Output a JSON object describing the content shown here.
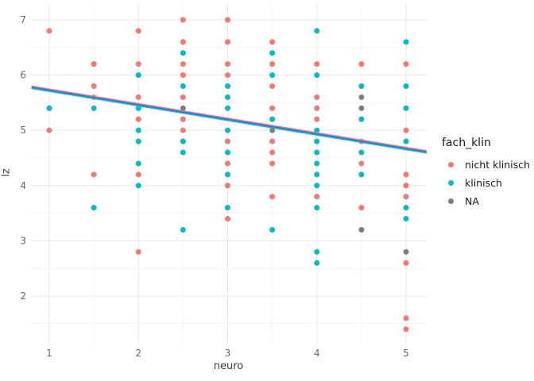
{
  "chart_data": {
    "type": "scatter",
    "title": "",
    "xlabel": "neuro",
    "ylabel": "lz",
    "x_ticks": [
      1,
      2,
      3,
      4,
      5
    ],
    "y_ticks": [
      2,
      3,
      4,
      5,
      6,
      7
    ],
    "x_minor_ticks": [
      1.5,
      2.5,
      3.5,
      4.5
    ],
    "y_minor_ticks": [
      1.5,
      2.5,
      3.5,
      4.5,
      5.5,
      6.5
    ],
    "xlim": [
      0.8,
      5.23
    ],
    "ylim": [
      1.12,
      7.29
    ],
    "grid": {
      "major": true,
      "minor": true
    },
    "legend": {
      "title": "fach_klin",
      "position": "right",
      "entries": [
        {
          "label": "nicht klinisch",
          "color": "#F8766D"
        },
        {
          "label": "klinisch",
          "color": "#00BFC4"
        },
        {
          "label": "NA",
          "color": "#7F7F7F"
        }
      ]
    },
    "series": [
      {
        "name": "nicht klinisch",
        "color": "#F8766D",
        "points": [
          [
            1,
            6.8
          ],
          [
            1,
            5.0
          ],
          [
            1.5,
            6.2
          ],
          [
            1.5,
            5.8
          ],
          [
            1.5,
            5.6
          ],
          [
            1.5,
            4.2
          ],
          [
            2,
            6.8
          ],
          [
            2,
            6.2
          ],
          [
            2,
            5.6
          ],
          [
            2,
            5.2
          ],
          [
            2,
            4.2
          ],
          [
            2,
            2.8
          ],
          [
            2.5,
            7.0
          ],
          [
            2.5,
            6.6
          ],
          [
            2.5,
            6.2
          ],
          [
            2.5,
            6.0
          ],
          [
            2.5,
            5.6
          ],
          [
            2.5,
            5.2
          ],
          [
            2.5,
            5.0
          ],
          [
            3,
            7.0
          ],
          [
            3,
            6.6
          ],
          [
            3,
            6.2
          ],
          [
            3,
            6.0
          ],
          [
            3,
            4.8
          ],
          [
            3,
            4.4
          ],
          [
            3,
            4.0
          ],
          [
            3,
            3.4
          ],
          [
            3.5,
            6.6
          ],
          [
            3.5,
            6.2
          ],
          [
            3.5,
            5.8
          ],
          [
            3.5,
            5.4
          ],
          [
            3.5,
            4.8
          ],
          [
            3.5,
            4.6
          ],
          [
            3.5,
            4.4
          ],
          [
            3.5,
            3.8
          ],
          [
            4,
            6.2
          ],
          [
            4,
            5.6
          ],
          [
            4,
            5.4
          ],
          [
            4,
            5.2
          ],
          [
            4,
            3.8
          ],
          [
            4.5,
            6.2
          ],
          [
            4.5,
            4.8
          ],
          [
            4.5,
            4.4
          ],
          [
            4.5,
            3.6
          ],
          [
            5,
            6.2
          ],
          [
            5,
            5.0
          ],
          [
            5,
            4.2
          ],
          [
            5,
            4.0
          ],
          [
            5,
            3.8
          ],
          [
            5,
            2.6
          ],
          [
            5,
            1.6
          ],
          [
            5,
            1.4
          ]
        ]
      },
      {
        "name": "klinisch",
        "color": "#00BFC4",
        "points": [
          [
            1,
            5.4
          ],
          [
            1.5,
            5.4
          ],
          [
            1.5,
            3.6
          ],
          [
            2,
            6.0
          ],
          [
            2,
            5.4
          ],
          [
            2,
            5.0
          ],
          [
            2,
            4.8
          ],
          [
            2,
            4.4
          ],
          [
            2,
            4.0
          ],
          [
            2.5,
            6.4
          ],
          [
            2.5,
            5.8
          ],
          [
            2.5,
            4.8
          ],
          [
            2.5,
            4.6
          ],
          [
            2.5,
            3.2
          ],
          [
            3,
            5.8
          ],
          [
            3,
            5.6
          ],
          [
            3,
            5.4
          ],
          [
            3,
            5.0
          ],
          [
            3,
            4.6
          ],
          [
            3,
            4.2
          ],
          [
            3,
            3.6
          ],
          [
            3.5,
            6.4
          ],
          [
            3.5,
            6.0
          ],
          [
            3.5,
            5.2
          ],
          [
            3.5,
            3.2
          ],
          [
            4,
            6.8
          ],
          [
            4,
            6.0
          ],
          [
            4,
            5.0
          ],
          [
            4,
            4.8
          ],
          [
            4,
            4.6
          ],
          [
            4,
            4.4
          ],
          [
            4,
            4.2
          ],
          [
            4,
            4.0
          ],
          [
            4,
            3.6
          ],
          [
            4,
            2.8
          ],
          [
            4,
            2.6
          ],
          [
            4.5,
            5.8
          ],
          [
            4.5,
            5.2
          ],
          [
            4.5,
            4.6
          ],
          [
            4.5,
            4.2
          ],
          [
            5,
            6.6
          ],
          [
            5,
            5.8
          ],
          [
            5,
            5.4
          ],
          [
            5,
            4.8
          ],
          [
            5,
            3.6
          ],
          [
            5,
            3.4
          ]
        ]
      },
      {
        "name": "NA",
        "color": "#7F7F7F",
        "points": [
          [
            2.5,
            5.4
          ],
          [
            3.5,
            5.0
          ],
          [
            4.5,
            5.6
          ],
          [
            4.5,
            5.4
          ],
          [
            4.5,
            3.2
          ],
          [
            5,
            2.8
          ]
        ]
      }
    ],
    "trend_lines": [
      {
        "name": "fit-nicht-klinisch",
        "color": "#F8766D",
        "x": [
          0.8,
          5.23
        ],
        "y": [
          5.8,
          4.63
        ]
      },
      {
        "name": "fit-overall",
        "color": "#3366FF",
        "x": [
          0.8,
          5.23
        ],
        "y": [
          5.78,
          4.61
        ]
      },
      {
        "name": "fit-klinisch",
        "color": "#00BFC4",
        "x": [
          0.8,
          5.23
        ],
        "y": [
          5.76,
          4.59
        ]
      }
    ],
    "colors": {
      "background": "#FFFFFF",
      "grid_major": "#E8E8E8",
      "grid_minor": "#F4F4F4",
      "axis_text": "#666666",
      "axis_title": "#3d3d3d",
      "legend_text": "#1a1a1a"
    }
  }
}
